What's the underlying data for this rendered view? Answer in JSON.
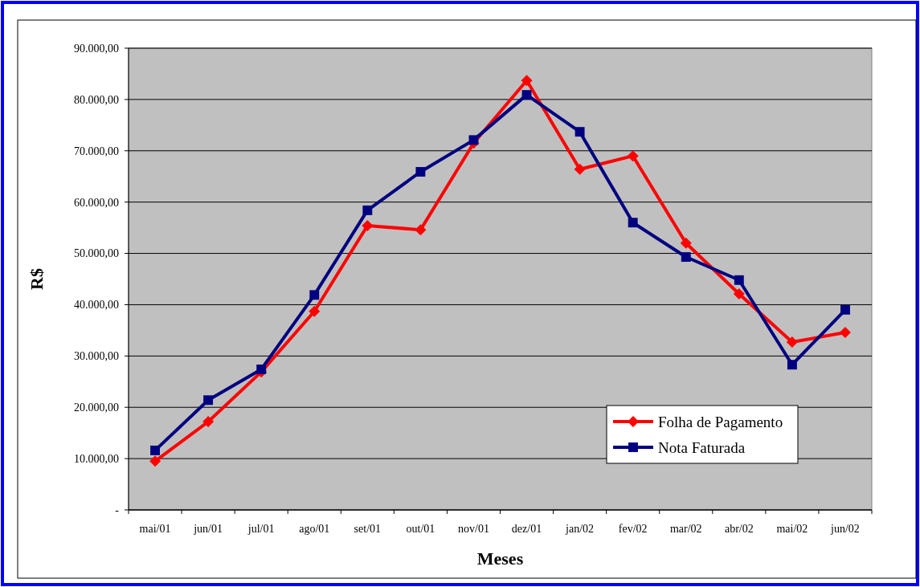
{
  "chart_data": {
    "type": "line",
    "xlabel": "Meses",
    "ylabel": "R$",
    "categories": [
      "mai/01",
      "jun/01",
      "jul/01",
      "ago/01",
      "set/01",
      "out/01",
      "nov/01",
      "dez/01",
      "jan/02",
      "fev/02",
      "mar/02",
      "abr/02",
      "mai/02",
      "jun/02"
    ],
    "series": [
      {
        "name": "Folha de Pagamento",
        "color": "#ff0000",
        "marker": "diamond",
        "values": [
          9500,
          17200,
          26900,
          38700,
          55400,
          54600,
          71500,
          83700,
          66400,
          69000,
          52000,
          42100,
          32700,
          34600
        ]
      },
      {
        "name": "Nota Faturada",
        "color": "#000080",
        "marker": "square",
        "values": [
          11600,
          21400,
          27400,
          41900,
          58400,
          65900,
          72100,
          80900,
          73700,
          56000,
          49300,
          44800,
          28300,
          39000
        ]
      }
    ],
    "ylim": [
      0,
      90000
    ],
    "yticks": [
      {
        "value": 0,
        "label": "-"
      },
      {
        "value": 10000,
        "label": "10.000,00"
      },
      {
        "value": 20000,
        "label": "20.000,00"
      },
      {
        "value": 30000,
        "label": "30.000,00"
      },
      {
        "value": 40000,
        "label": "40.000,00"
      },
      {
        "value": 50000,
        "label": "50.000,00"
      },
      {
        "value": 60000,
        "label": "60.000,00"
      },
      {
        "value": 70000,
        "label": "70.000,00"
      },
      {
        "value": 80000,
        "label": "80.000,00"
      },
      {
        "value": 90000,
        "label": "90.000,00"
      }
    ],
    "grid": "y",
    "legend": "bottom right",
    "line_style": "solid"
  }
}
